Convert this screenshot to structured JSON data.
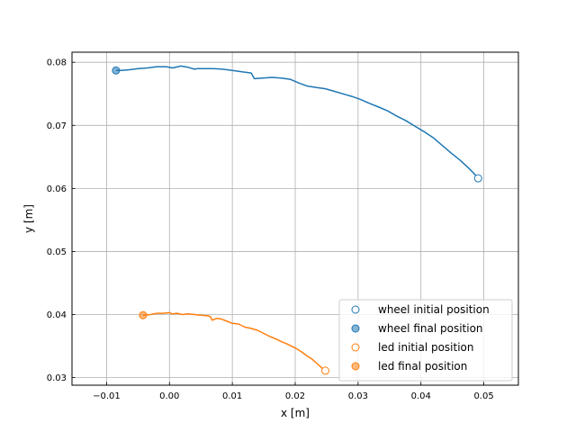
{
  "chart_data": {
    "type": "line",
    "xlabel": "x [m]",
    "ylabel": "y [m]",
    "xlim": [
      -0.0155,
      0.0555
    ],
    "ylim": [
      0.0288,
      0.0816
    ],
    "x_ticks": [
      -0.01,
      0.0,
      0.01,
      0.02,
      0.03,
      0.04,
      0.05
    ],
    "x_tick_labels": [
      "−0.01",
      "0.00",
      "0.01",
      "0.02",
      "0.03",
      "0.04",
      "0.05"
    ],
    "y_ticks": [
      0.03,
      0.04,
      0.05,
      0.06,
      0.07,
      0.08
    ],
    "y_tick_labels": [
      "0.03",
      "0.04",
      "0.05",
      "0.06",
      "0.07",
      "0.08"
    ],
    "grid": true,
    "legend_position": "lower-right",
    "series": [
      {
        "name": "wheel",
        "color": "#1f77b4",
        "x": [
          0.0491,
          0.0484,
          0.0475,
          0.0462,
          0.0448,
          0.0434,
          0.042,
          0.0405,
          0.039,
          0.0375,
          0.0361,
          0.0347,
          0.0333,
          0.0318,
          0.0304,
          0.029,
          0.0276,
          0.0262,
          0.0248,
          0.0234,
          0.022,
          0.0206,
          0.0192,
          0.0178,
          0.0163,
          0.0148,
          0.0135,
          0.013,
          0.0115,
          0.01,
          0.0085,
          0.007,
          0.0055,
          0.0045,
          0.004,
          0.003,
          0.0018,
          0.0005,
          -0.0005,
          -0.002,
          -0.0035,
          -0.005,
          -0.0065,
          -0.0078,
          -0.0085
        ],
        "y": [
          0.0616,
          0.0624,
          0.0633,
          0.0645,
          0.0656,
          0.0668,
          0.068,
          0.069,
          0.0699,
          0.0708,
          0.0715,
          0.0723,
          0.0729,
          0.0735,
          0.0741,
          0.0746,
          0.075,
          0.0754,
          0.0758,
          0.076,
          0.0762,
          0.0767,
          0.0773,
          0.0775,
          0.0776,
          0.0775,
          0.0774,
          0.0783,
          0.0785,
          0.0787,
          0.0789,
          0.079,
          0.079,
          0.079,
          0.0789,
          0.0792,
          0.0794,
          0.0791,
          0.0793,
          0.0793,
          0.0791,
          0.079,
          0.0788,
          0.0787,
          0.0787
        ],
        "initial": {
          "label": "wheel initial position",
          "x": 0.0491,
          "y": 0.0616
        },
        "final": {
          "label": "wheel final position",
          "x": -0.0085,
          "y": 0.0787
        }
      },
      {
        "name": "led",
        "color": "#ff7f0e",
        "x": [
          0.0248,
          0.0242,
          0.0234,
          0.0226,
          0.0218,
          0.021,
          0.0202,
          0.0194,
          0.0186,
          0.0178,
          0.017,
          0.016,
          0.015,
          0.014,
          0.013,
          0.012,
          0.011,
          0.01,
          0.009,
          0.0082,
          0.0075,
          0.0068,
          0.0065,
          0.006,
          0.005,
          0.004,
          0.003,
          0.002,
          0.0012,
          0.0005,
          0.0,
          -0.001,
          -0.002,
          -0.003,
          -0.0042
        ],
        "y": [
          0.0311,
          0.0316,
          0.0323,
          0.033,
          0.0335,
          0.0341,
          0.0346,
          0.035,
          0.0354,
          0.0357,
          0.0361,
          0.0365,
          0.037,
          0.0375,
          0.0378,
          0.038,
          0.0385,
          0.0386,
          0.039,
          0.0393,
          0.0394,
          0.0391,
          0.0397,
          0.0398,
          0.0399,
          0.04,
          0.0401,
          0.04,
          0.0402,
          0.0401,
          0.0403,
          0.0402,
          0.0402,
          0.04,
          0.0399
        ],
        "initial": {
          "label": "led initial position",
          "x": 0.0248,
          "y": 0.0311
        },
        "final": {
          "label": "led final position",
          "x": -0.0042,
          "y": 0.0399
        }
      }
    ]
  }
}
